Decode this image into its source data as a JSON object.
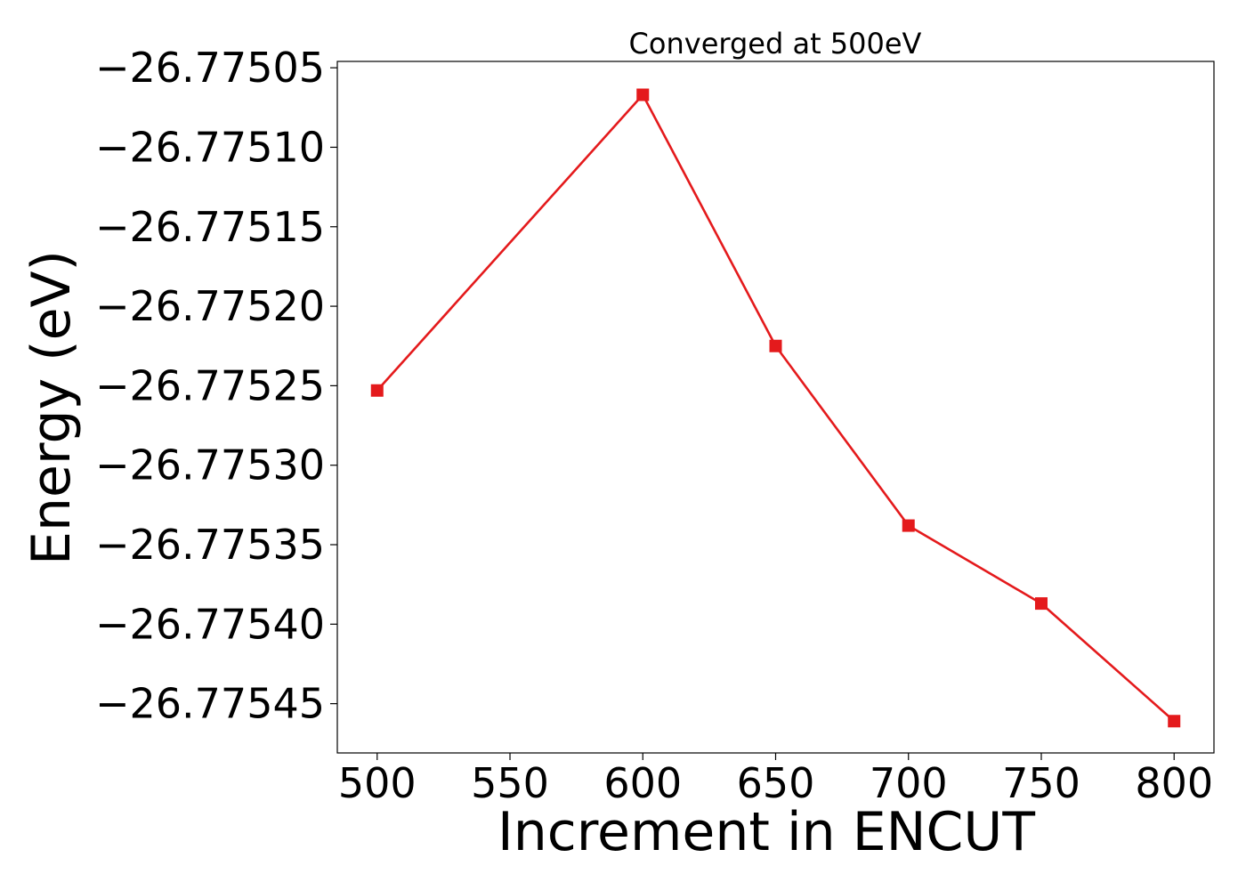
{
  "chart_data": {
    "type": "line",
    "title": "Converged at 500eV",
    "xlabel": "Increment in ENCUT",
    "ylabel": "Energy (eV)",
    "x": [
      500,
      600,
      650,
      700,
      750,
      800
    ],
    "y": [
      -26.775253,
      -26.775067,
      -26.775225,
      -26.775338,
      -26.775387,
      -26.775461
    ],
    "xlim": [
      485,
      815
    ],
    "ylim": [
      -26.775481,
      -26.775046
    ],
    "xticks": [
      500,
      550,
      600,
      650,
      700,
      750,
      800
    ],
    "xtick_labels": [
      "500",
      "550",
      "600",
      "650",
      "700",
      "750",
      "800"
    ],
    "yticks": [
      -26.77505,
      -26.7751,
      -26.77515,
      -26.7752,
      -26.77525,
      -26.7753,
      -26.77535,
      -26.7754,
      -26.77545
    ],
    "ytick_labels": [
      "−26.77505",
      "−26.77510",
      "−26.77515",
      "−26.77520",
      "−26.77525",
      "−26.77530",
      "−26.77535",
      "−26.77540",
      "−26.77545"
    ],
    "marker": "square",
    "color": "#e41a1c",
    "grid": false,
    "legend": false
  }
}
